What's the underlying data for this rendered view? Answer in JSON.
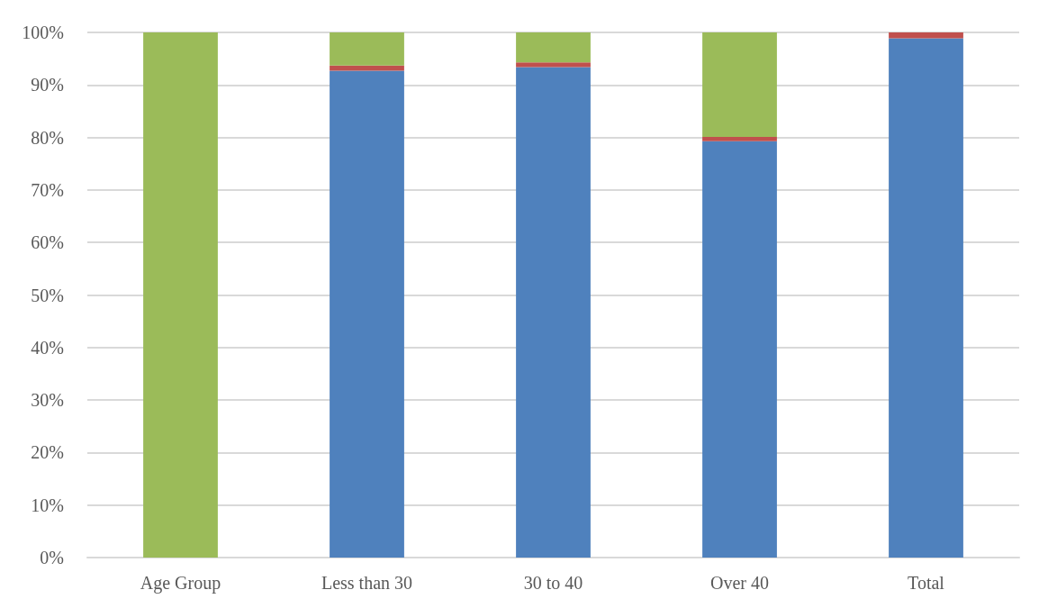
{
  "chart_data": {
    "type": "bar",
    "stacked": true,
    "categories": [
      "Age Group",
      "Less than 30",
      "30 to 40",
      "Over 40",
      "Total"
    ],
    "series": [
      {
        "color": "#4f81bd",
        "values": [
          0,
          92.7,
          93.4,
          79.3,
          98.9
        ]
      },
      {
        "color": "#c0504d",
        "values": [
          0,
          1.0,
          0.9,
          0.8,
          1.1
        ]
      },
      {
        "color": "#9bbb59",
        "values": [
          100,
          6.3,
          5.7,
          19.9,
          0
        ]
      }
    ],
    "ylim": [
      0,
      100
    ],
    "yticks": [
      {
        "value": 0,
        "label": "0%"
      },
      {
        "value": 10,
        "label": "10%"
      },
      {
        "value": 20,
        "label": "20%"
      },
      {
        "value": 30,
        "label": "30%"
      },
      {
        "value": 40,
        "label": "40%"
      },
      {
        "value": 50,
        "label": "50%"
      },
      {
        "value": 60,
        "label": "60%"
      },
      {
        "value": 70,
        "label": "70%"
      },
      {
        "value": 80,
        "label": "80%"
      },
      {
        "value": 90,
        "label": "90%"
      },
      {
        "value": 100,
        "label": "100%"
      }
    ],
    "grid": "y"
  }
}
